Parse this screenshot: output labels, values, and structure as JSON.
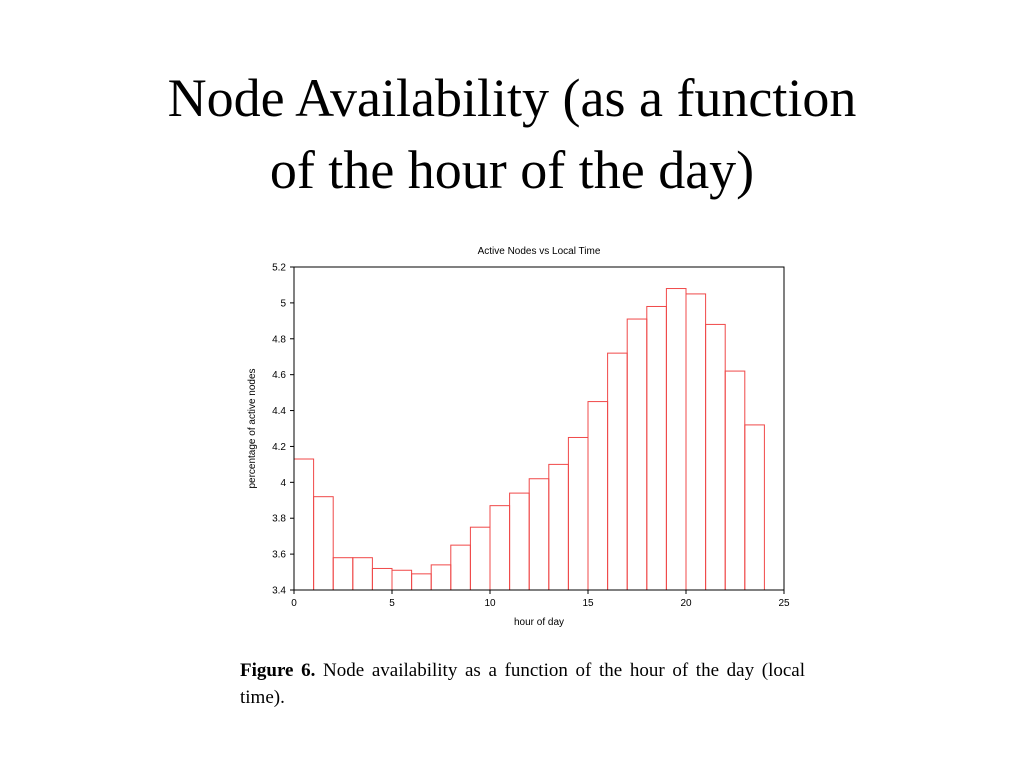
{
  "slide": {
    "title_line1": "Node Availability (as a function",
    "title_line2": "of the hour of the day)"
  },
  "caption": {
    "label": "Figure 6.",
    "text": "Node availability as a function of the hour of the day (local time)."
  },
  "chart_data": {
    "type": "bar",
    "title": "Active Nodes vs Local Time",
    "xlabel": "hour of day",
    "ylabel": "percentage of active nodes",
    "xlim": [
      0,
      25
    ],
    "ylim": [
      3.4,
      5.2
    ],
    "x_ticks": [
      0,
      5,
      10,
      15,
      20,
      25
    ],
    "y_ticks": [
      3.4,
      3.6,
      3.8,
      4,
      4.2,
      4.4,
      4.6,
      4.8,
      5,
      5.2
    ],
    "grid": false,
    "bar_color": "#f04848",
    "bins": [
      {
        "hour": 0,
        "value": 4.13
      },
      {
        "hour": 1,
        "value": 3.92
      },
      {
        "hour": 2,
        "value": 3.58
      },
      {
        "hour": 3,
        "value": 3.58
      },
      {
        "hour": 4,
        "value": 3.52
      },
      {
        "hour": 5,
        "value": 3.51
      },
      {
        "hour": 6,
        "value": 3.49
      },
      {
        "hour": 7,
        "value": 3.54
      },
      {
        "hour": 8,
        "value": 3.65
      },
      {
        "hour": 9,
        "value": 3.75
      },
      {
        "hour": 10,
        "value": 3.87
      },
      {
        "hour": 11,
        "value": 3.94
      },
      {
        "hour": 12,
        "value": 4.02
      },
      {
        "hour": 13,
        "value": 4.1
      },
      {
        "hour": 14,
        "value": 4.25
      },
      {
        "hour": 15,
        "value": 4.45
      },
      {
        "hour": 16,
        "value": 4.72
      },
      {
        "hour": 17,
        "value": 4.91
      },
      {
        "hour": 18,
        "value": 4.98
      },
      {
        "hour": 19,
        "value": 5.08
      },
      {
        "hour": 20,
        "value": 5.05
      },
      {
        "hour": 21,
        "value": 4.88
      },
      {
        "hour": 22,
        "value": 4.62
      },
      {
        "hour": 23,
        "value": 4.32
      }
    ]
  }
}
